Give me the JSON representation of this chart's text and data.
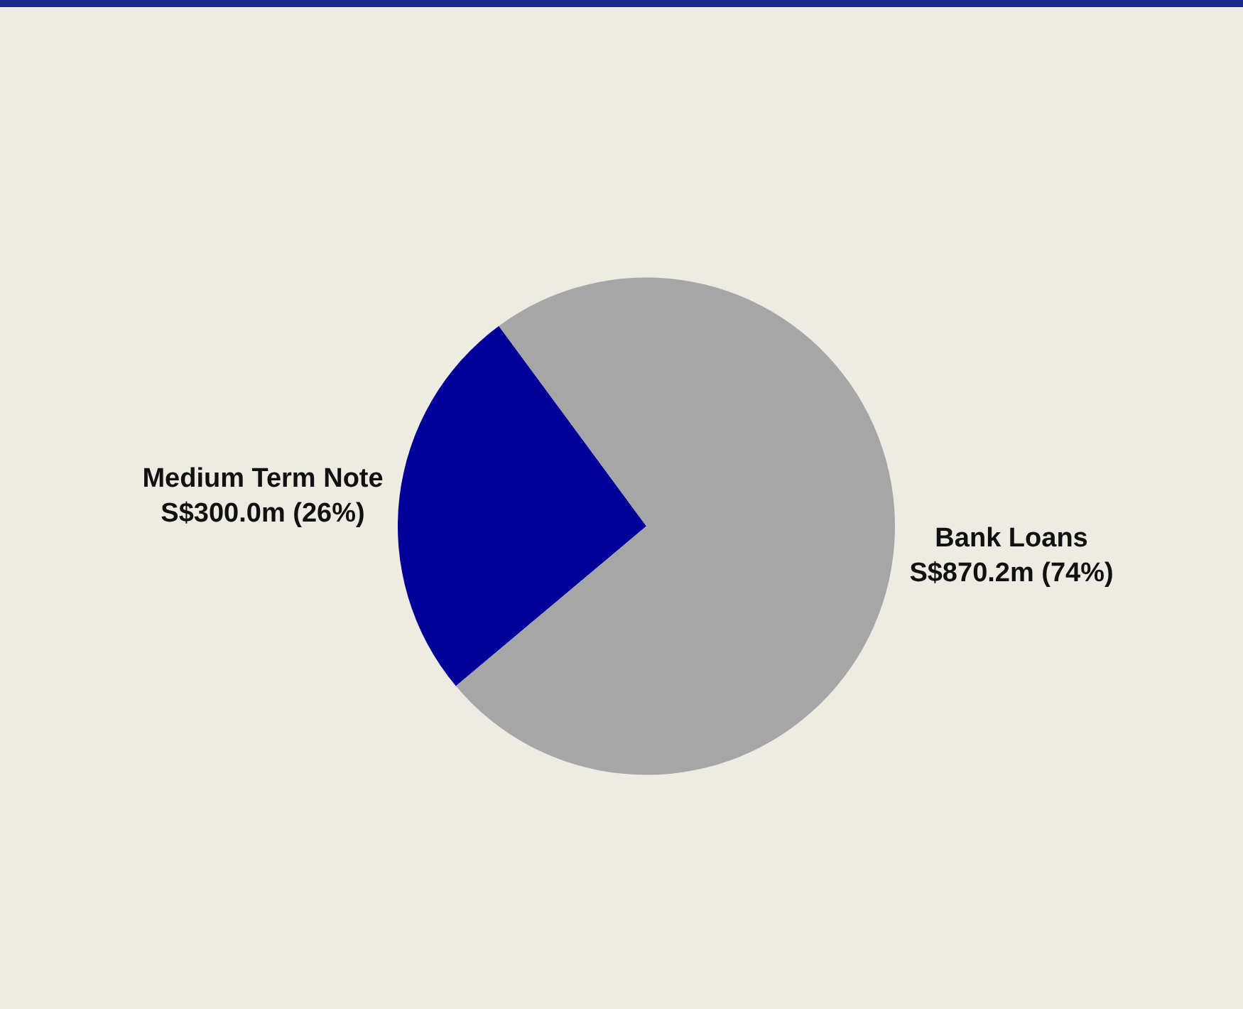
{
  "chart_data": {
    "type": "pie",
    "categories": [
      "Medium Term Note",
      "Bank Loans"
    ],
    "values": [
      26,
      74
    ],
    "value_labels": [
      "S$300.0m (26%)",
      "S$870.2m (74%)"
    ],
    "colors": [
      "#000099",
      "#a6a6a6"
    ],
    "legend": false
  }
}
